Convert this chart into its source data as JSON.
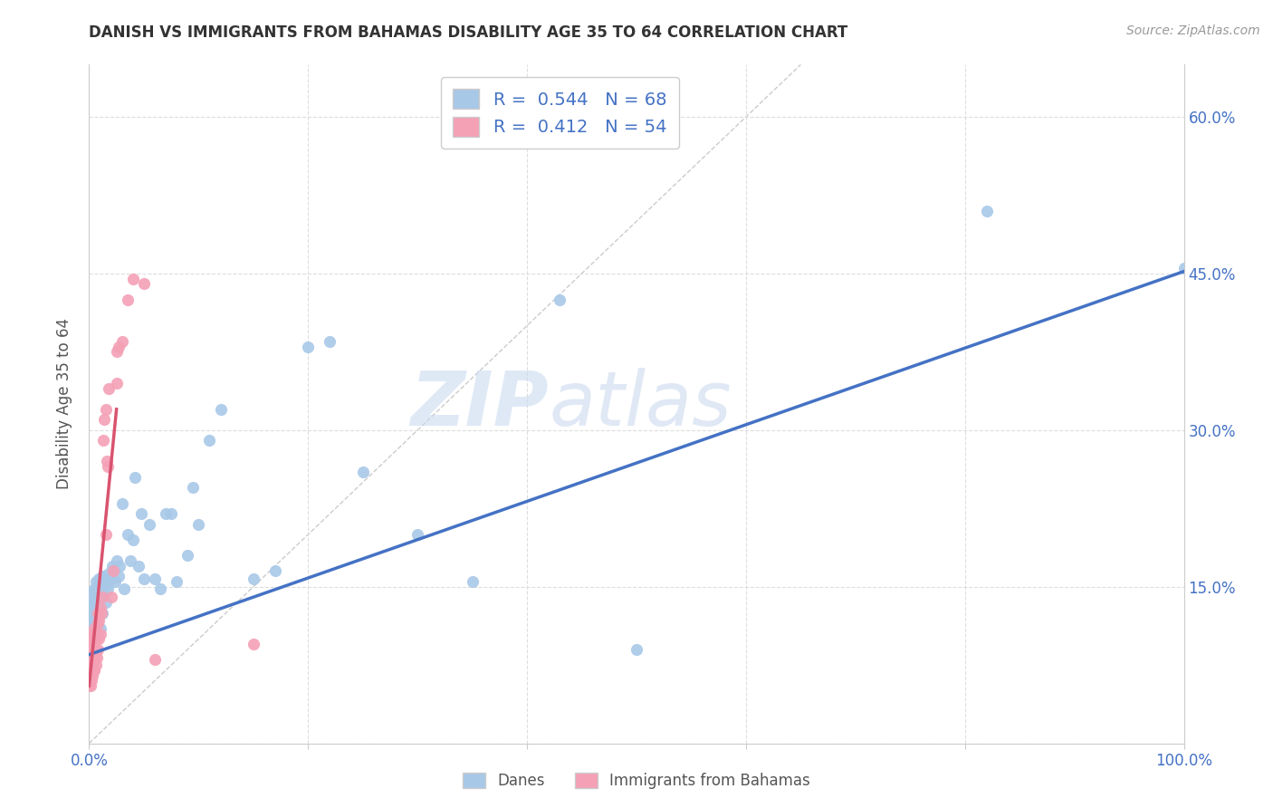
{
  "title": "DANISH VS IMMIGRANTS FROM BAHAMAS DISABILITY AGE 35 TO 64 CORRELATION CHART",
  "source": "Source: ZipAtlas.com",
  "ylabel": "Disability Age 35 to 64",
  "xlim": [
    0.0,
    1.0
  ],
  "ylim": [
    0.0,
    0.65
  ],
  "ytick_positions": [
    0.0,
    0.15,
    0.3,
    0.45,
    0.6
  ],
  "yticklabels_right": [
    "",
    "15.0%",
    "30.0%",
    "45.0%",
    "60.0%"
  ],
  "danes_color": "#a8c8e8",
  "immigrants_color": "#f4a0b5",
  "danes_line_color": "#4472c4",
  "immigrants_line_color": "#d9536f",
  "diagonal_color": "#cccccc",
  "watermark_zip": "ZIP",
  "watermark_atlas": "atlas",
  "danes_scatter_x": [
    0.001,
    0.001,
    0.002,
    0.002,
    0.003,
    0.003,
    0.004,
    0.004,
    0.005,
    0.005,
    0.005,
    0.006,
    0.006,
    0.007,
    0.007,
    0.008,
    0.008,
    0.009,
    0.009,
    0.01,
    0.01,
    0.011,
    0.012,
    0.012,
    0.013,
    0.014,
    0.015,
    0.016,
    0.017,
    0.018,
    0.02,
    0.021,
    0.022,
    0.024,
    0.025,
    0.027,
    0.028,
    0.03,
    0.032,
    0.035,
    0.038,
    0.04,
    0.042,
    0.045,
    0.048,
    0.05,
    0.055,
    0.06,
    0.065,
    0.07,
    0.075,
    0.08,
    0.09,
    0.095,
    0.1,
    0.11,
    0.12,
    0.15,
    0.17,
    0.2,
    0.22,
    0.25,
    0.3,
    0.35,
    0.43,
    0.5,
    0.82,
    1.0
  ],
  "danes_scatter_y": [
    0.12,
    0.14,
    0.115,
    0.13,
    0.1,
    0.125,
    0.135,
    0.145,
    0.11,
    0.13,
    0.148,
    0.12,
    0.155,
    0.125,
    0.142,
    0.115,
    0.15,
    0.13,
    0.158,
    0.11,
    0.145,
    0.155,
    0.125,
    0.16,
    0.14,
    0.15,
    0.135,
    0.152,
    0.148,
    0.163,
    0.158,
    0.17,
    0.165,
    0.155,
    0.175,
    0.16,
    0.17,
    0.23,
    0.148,
    0.2,
    0.175,
    0.195,
    0.255,
    0.17,
    0.22,
    0.158,
    0.21,
    0.158,
    0.148,
    0.22,
    0.22,
    0.155,
    0.18,
    0.245,
    0.21,
    0.29,
    0.32,
    0.158,
    0.165,
    0.38,
    0.385,
    0.26,
    0.2,
    0.155,
    0.425,
    0.09,
    0.51,
    0.455
  ],
  "immigrants_scatter_x": [
    0.0,
    0.0,
    0.0,
    0.0,
    0.001,
    0.001,
    0.001,
    0.001,
    0.002,
    0.002,
    0.002,
    0.002,
    0.003,
    0.003,
    0.003,
    0.003,
    0.004,
    0.004,
    0.004,
    0.005,
    0.005,
    0.005,
    0.006,
    0.006,
    0.006,
    0.007,
    0.007,
    0.008,
    0.008,
    0.008,
    0.009,
    0.009,
    0.01,
    0.01,
    0.011,
    0.012,
    0.013,
    0.014,
    0.015,
    0.015,
    0.016,
    0.017,
    0.018,
    0.02,
    0.022,
    0.025,
    0.025,
    0.027,
    0.03,
    0.035,
    0.04,
    0.05,
    0.06,
    0.15
  ],
  "immigrants_scatter_y": [
    0.055,
    0.065,
    0.075,
    0.085,
    0.055,
    0.07,
    0.08,
    0.1,
    0.06,
    0.075,
    0.09,
    0.1,
    0.065,
    0.075,
    0.09,
    0.105,
    0.07,
    0.08,
    0.095,
    0.07,
    0.082,
    0.11,
    0.075,
    0.088,
    0.1,
    0.082,
    0.105,
    0.09,
    0.115,
    0.125,
    0.1,
    0.118,
    0.105,
    0.13,
    0.125,
    0.14,
    0.29,
    0.31,
    0.2,
    0.32,
    0.27,
    0.265,
    0.34,
    0.14,
    0.165,
    0.375,
    0.345,
    0.38,
    0.385,
    0.425,
    0.445,
    0.44,
    0.08,
    0.095
  ],
  "background_color": "#ffffff",
  "grid_color": "#dddddd",
  "danes_line_x0": 0.0,
  "danes_line_y0": 0.085,
  "danes_line_x1": 1.0,
  "danes_line_y1": 0.452,
  "imm_line_x0": 0.0,
  "imm_line_y0": 0.055,
  "imm_line_x1": 0.025,
  "imm_line_y1": 0.32
}
